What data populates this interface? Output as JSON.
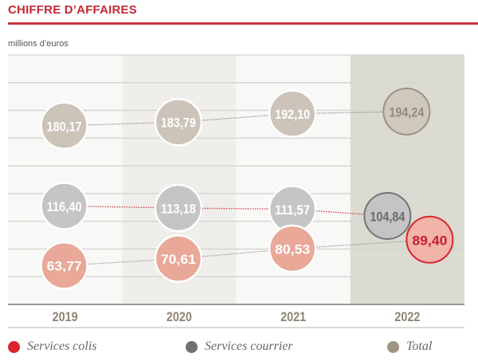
{
  "header": {
    "title": "CHIFFRE D’AFFAIRES",
    "unit": "millions d’euros"
  },
  "colors": {
    "accent": "#c62834",
    "colis": "#e9a898",
    "colis_highlight": "#f2b3a8",
    "colis_legend": "#d9262f",
    "courrier": "#c5c5c6",
    "courrier_legend": "#707070",
    "total": "#ccc4b9",
    "total_legend": "#9f9584"
  },
  "chart_data": {
    "type": "scatter",
    "title": "CHIFFRE D’AFFAIRES",
    "ylabel": "millions d’euros",
    "xlabel": "",
    "categories": [
      "2019",
      "2020",
      "2021",
      "2022"
    ],
    "highlight_category": "2022",
    "grid": true,
    "legend_position": "bottom",
    "series": [
      {
        "name": "Services colis",
        "key": "colis",
        "values": [
          63.77,
          70.61,
          80.53,
          89.4
        ],
        "labels": [
          "63,77",
          "70,61",
          "80,53",
          "89,40"
        ]
      },
      {
        "name": "Services courrier",
        "key": "courrier",
        "values": [
          116.4,
          113.18,
          111.57,
          104.84
        ],
        "labels": [
          "116,40",
          "113,18",
          "111,57",
          "104,84"
        ]
      },
      {
        "name": "Total",
        "key": "total",
        "values": [
          180.17,
          183.79,
          192.1,
          194.24
        ],
        "labels": [
          "180,17",
          "183,79",
          "192,10",
          "194,24"
        ]
      }
    ]
  },
  "legend": [
    {
      "label": "Services colis",
      "color": "#d9262f"
    },
    {
      "label": "Services courrier",
      "color": "#707070"
    },
    {
      "label": "Total",
      "color": "#9f9584"
    }
  ]
}
